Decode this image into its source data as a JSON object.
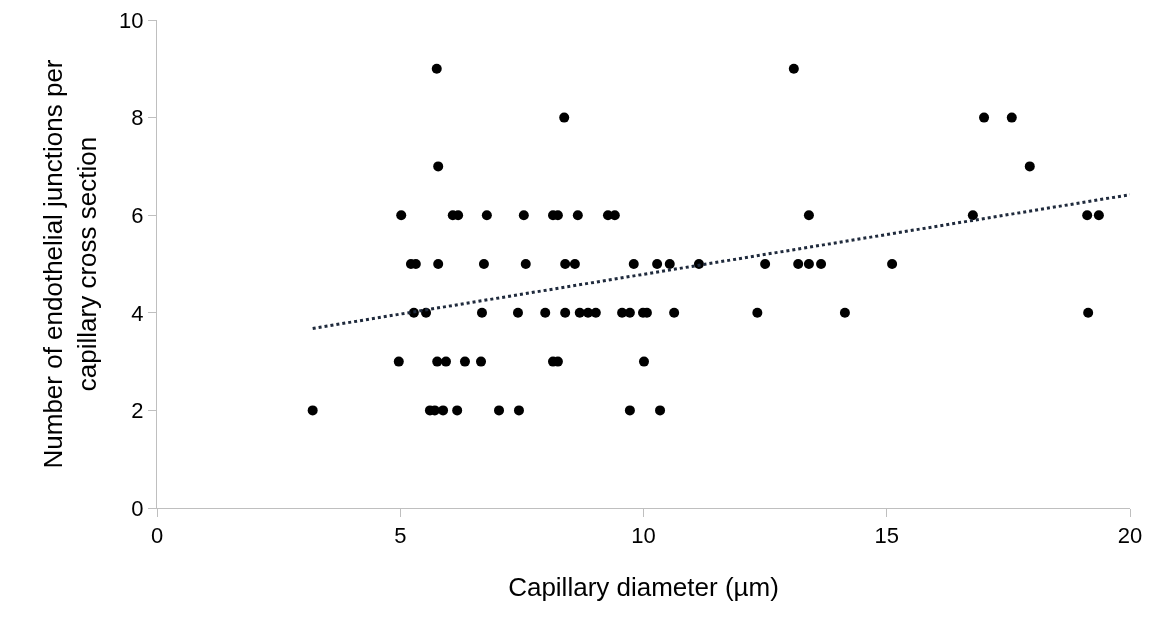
{
  "chart_data": {
    "type": "scatter",
    "xlabel": "Capillary diameter (µm)",
    "ylabel": "Number of endothelial junctions per capillary cross section",
    "xlim": [
      0,
      20
    ],
    "xticks": [
      0,
      5,
      10,
      15,
      20
    ],
    "ylim": [
      0,
      10
    ],
    "yticks": [
      0,
      2,
      4,
      6,
      8,
      10
    ],
    "grid": false,
    "legend": false,
    "marker": "circle",
    "series": [
      {
        "color": "#000000",
        "x": [
          3.2,
          5.61,
          5.71,
          5.88,
          6.17,
          7.03,
          7.44,
          9.72,
          10.34,
          4.97,
          5.76,
          5.94,
          6.33,
          6.66,
          8.14,
          8.24,
          10.01,
          5.28,
          5.53,
          6.68,
          7.42,
          7.98,
          8.39,
          8.69,
          8.86,
          9.02,
          9.56,
          9.72,
          9.99,
          10.07,
          10.63,
          12.34,
          14.14,
          19.14,
          5.22,
          5.32,
          5.78,
          6.72,
          7.58,
          8.39,
          8.59,
          9.8,
          10.28,
          10.54,
          11.14,
          12.5,
          13.18,
          13.4,
          13.65,
          15.11,
          5.02,
          6.08,
          6.19,
          6.78,
          7.54,
          8.14,
          8.24,
          8.65,
          9.27,
          9.41,
          13.4,
          16.77,
          19.12,
          19.36,
          5.78,
          17.94,
          8.37,
          17.0,
          17.57,
          5.75,
          13.09
        ],
        "values": [
          2,
          2,
          2,
          2,
          2,
          2,
          2,
          2,
          2,
          3,
          3,
          3,
          3,
          3,
          3,
          3,
          3,
          4,
          4,
          4,
          4,
          4,
          4,
          4,
          4,
          4,
          4,
          4,
          4,
          4,
          4,
          4,
          4,
          4,
          5,
          5,
          5,
          5,
          5,
          5,
          5,
          5,
          5,
          5,
          5,
          5,
          5,
          5,
          5,
          5,
          6,
          6,
          6,
          6,
          6,
          6,
          6,
          6,
          6,
          6,
          6,
          6,
          6,
          6,
          7,
          7,
          8,
          8,
          8,
          9,
          9
        ]
      },
      {
        "type": "line",
        "line_style": "dotted",
        "marker": "none",
        "color": "#1f2a3c",
        "x": [
          3.2,
          20
        ],
        "values": [
          3.68,
          6.42
        ]
      }
    ]
  }
}
